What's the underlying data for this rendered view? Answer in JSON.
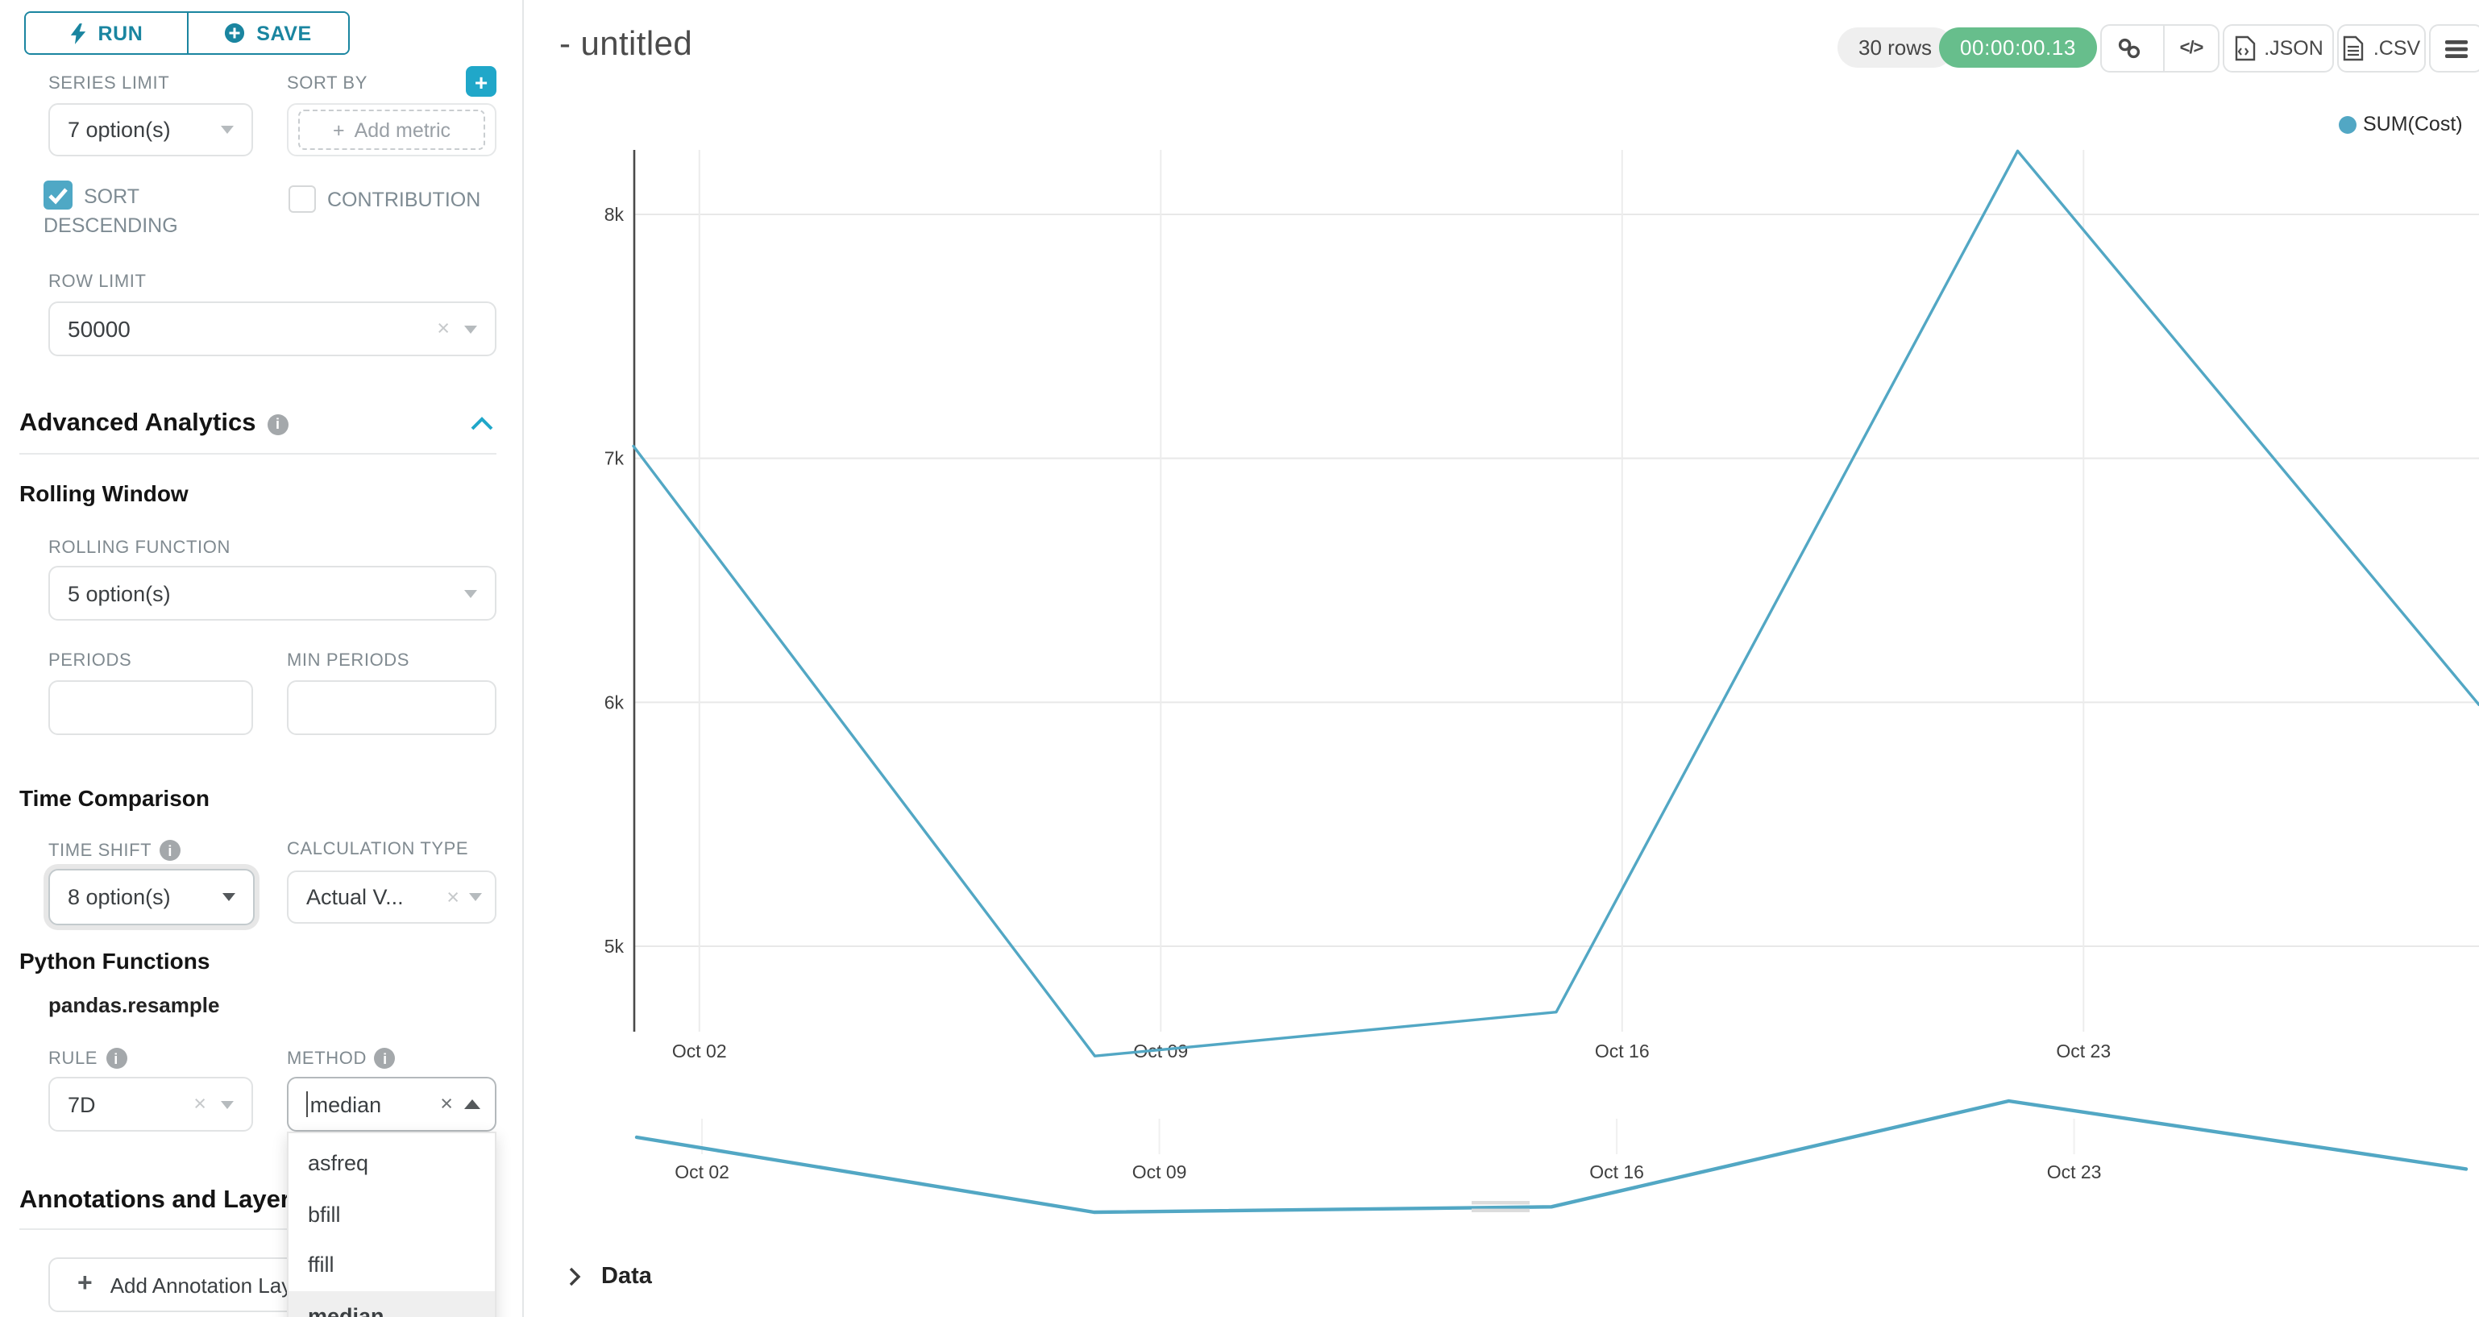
{
  "icons": {
    "clear": "×",
    "info": "i",
    "plus": "+",
    "code": "</>"
  },
  "sidebar": {
    "run_label": "RUN",
    "save_label": "SAVE",
    "series_limit": {
      "label": "SERIES LIMIT",
      "value": "7 option(s)"
    },
    "sort_by": {
      "label": "SORT BY",
      "placeholder": "Add metric"
    },
    "sort_descending_label": "SORT DESCENDING",
    "contribution_label": "CONTRIBUTION",
    "row_limit": {
      "label": "ROW LIMIT",
      "value": "50000"
    },
    "advanced_analytics_title": "Advanced Analytics",
    "rolling_window": {
      "title": "Rolling Window",
      "rolling_function": {
        "label": "ROLLING FUNCTION",
        "value": "5 option(s)"
      },
      "periods_label": "PERIODS",
      "min_periods_label": "MIN PERIODS"
    },
    "time_comparison": {
      "title": "Time Comparison",
      "time_shift": {
        "label": "TIME SHIFT",
        "value": "8 option(s)"
      },
      "calculation_type": {
        "label": "CALCULATION TYPE",
        "value": "Actual V..."
      }
    },
    "python_functions": {
      "title": "Python Functions",
      "subtitle": "pandas.resample",
      "rule": {
        "label": "RULE",
        "value": "7D"
      },
      "method": {
        "label": "METHOD",
        "value": "median",
        "options": [
          "asfreq",
          "bfill",
          "ffill",
          "median"
        ],
        "selected_option": "median"
      }
    },
    "annotations": {
      "title": "Annotations and Layers",
      "add_button": "Add Annotation Layer"
    }
  },
  "header": {
    "title": "- untitled",
    "rows_badge": "30 rows",
    "timer_badge": "00:00:00.13",
    "json_label": ".JSON",
    "csv_label": ".CSV"
  },
  "data_panel": {
    "label": "Data"
  },
  "chart_data": {
    "type": "line",
    "title": "",
    "legend": [
      {
        "label": "SUM(Cost)",
        "color": "#52A7C4"
      }
    ],
    "legend_position": "top-right",
    "grid": true,
    "x_ticks": [
      "Oct 02",
      "Oct 09",
      "Oct 16",
      "Oct 23"
    ],
    "x_tick_days": [
      1,
      8,
      15,
      22
    ],
    "y_ticks": [
      "8k",
      "7k",
      "6k",
      "5k"
    ],
    "y_tick_values": [
      8000,
      7000,
      6000,
      5000
    ],
    "ylim": [
      4400,
      8500
    ],
    "series": [
      {
        "name": "SUM(Cost)",
        "x_dates": [
          "Oct 01",
          "Oct 08",
          "Oct 15",
          "Oct 22",
          "Oct 29"
        ],
        "x_days": [
          0,
          7,
          14,
          21,
          28
        ],
        "values": [
          7050,
          4550,
          4730,
          8260,
          5990
        ]
      }
    ],
    "preview": {
      "note": "same series shown in mini scrubber chart below main chart"
    }
  }
}
